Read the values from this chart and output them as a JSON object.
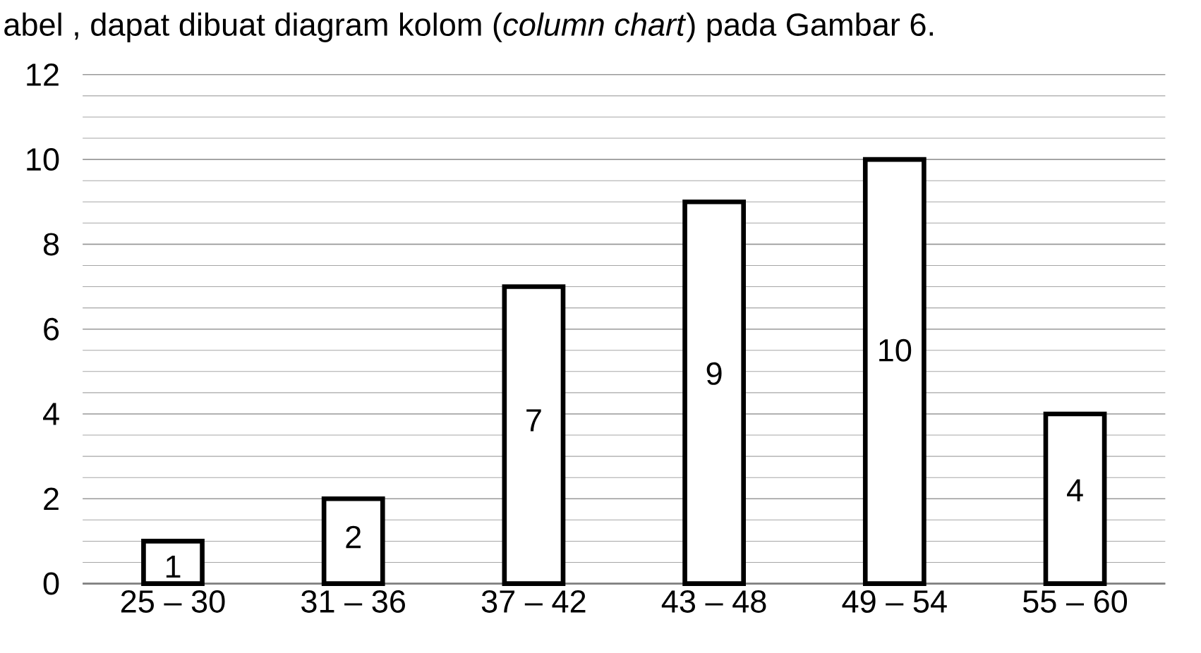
{
  "chart_data": {
    "type": "bar",
    "categories": [
      "25 – 30",
      "31 – 36",
      "37 – 42",
      "43 – 48",
      "49 – 54",
      "55 – 60"
    ],
    "values": [
      1,
      2,
      7,
      9,
      10,
      4
    ],
    "value_labels": [
      "1",
      "2",
      "7",
      "9",
      "10",
      "4"
    ],
    "color": "#ffffff",
    "ylim": [
      0,
      12
    ],
    "yticks": [
      0,
      2,
      4,
      6,
      8,
      10,
      12
    ],
    "grid": "y",
    "annotations": [
      "abel , dapat dibuat diagram kolom (*column chart*) pada Gambar 6."
    ]
  }
}
